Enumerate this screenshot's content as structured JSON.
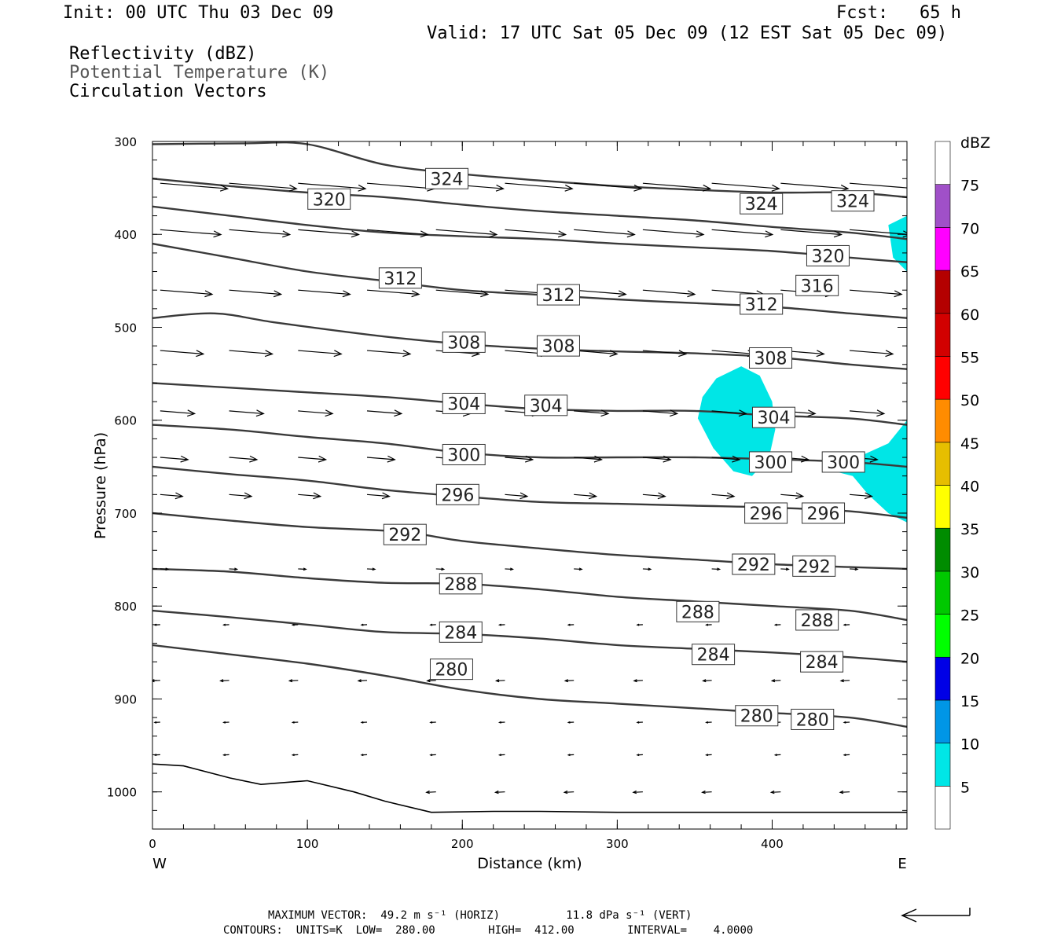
{
  "header": {
    "init": "Init: 00 UTC Thu 03 Dec 09",
    "fcst": "Fcst:   65 h",
    "valid": "Valid: 17 UTC Sat 05 Dec 09 (12 EST Sat 05 Dec 09)"
  },
  "legend": {
    "field1": "Reflectivity (dBZ)",
    "field2": "Potential Temperature (K)",
    "field3": "Circulation Vectors"
  },
  "footer": {
    "max_vector": "MAXIMUM VECTOR:  49.2 m s⁻¹ (HORIZ)          11.8 dPa s⁻¹ (VERT)",
    "contours": "CONTOURS:  UNITS=K  LOW=  280.00        HIGH=  412.00        INTERVAL=    4.0000"
  },
  "colors": {
    "contour": "#3a3a3a",
    "reflectivity_5": "#00e6e6",
    "axis": "#000000"
  },
  "chart_data": {
    "type": "contour",
    "xlabel": "Distance (km)",
    "ylabel": "Pressure (hPa)",
    "x_left_label": "W",
    "x_right_label": "E",
    "xlim": [
      0,
      487
    ],
    "ylim": [
      300,
      1040
    ],
    "y_scale": "linear-inverted",
    "x_ticks": [
      0,
      100,
      200,
      300,
      400
    ],
    "y_ticks": [
      300,
      400,
      500,
      600,
      700,
      800,
      900,
      1000
    ],
    "colorbar": {
      "unit": "dBZ",
      "levels": [
        5,
        10,
        15,
        20,
        25,
        30,
        35,
        40,
        45,
        50,
        55,
        60,
        65,
        70,
        75
      ],
      "colors": [
        "#00e6e6",
        "#0096e6",
        "#0000e6",
        "#00ff00",
        "#00c800",
        "#008c00",
        "#ffff00",
        "#e6be00",
        "#ff8c00",
        "#ff0000",
        "#d20000",
        "#b40000",
        "#ff00ff",
        "#a050c8",
        "#ffffff"
      ]
    },
    "contours": [
      {
        "value": 280,
        "points": [
          [
            0,
            842
          ],
          [
            40,
            850
          ],
          [
            100,
            862
          ],
          [
            150,
            875
          ],
          [
            200,
            890
          ],
          [
            250,
            900
          ],
          [
            300,
            905
          ],
          [
            350,
            910
          ],
          [
            400,
            915
          ],
          [
            450,
            920
          ],
          [
            487,
            930
          ]
        ],
        "labels": [
          [
            193,
            868
          ],
          [
            390,
            918
          ],
          [
            426,
            922
          ]
        ]
      },
      {
        "value": 284,
        "points": [
          [
            0,
            805
          ],
          [
            50,
            812
          ],
          [
            100,
            820
          ],
          [
            150,
            828
          ],
          [
            200,
            830
          ],
          [
            250,
            835
          ],
          [
            300,
            842
          ],
          [
            350,
            846
          ],
          [
            400,
            850
          ],
          [
            450,
            855
          ],
          [
            487,
            860
          ]
        ],
        "labels": [
          [
            199,
            828
          ],
          [
            362,
            852
          ],
          [
            432,
            860
          ]
        ]
      },
      {
        "value": 288,
        "points": [
          [
            0,
            760
          ],
          [
            50,
            763
          ],
          [
            100,
            770
          ],
          [
            150,
            775
          ],
          [
            200,
            776
          ],
          [
            250,
            782
          ],
          [
            300,
            790
          ],
          [
            350,
            795
          ],
          [
            400,
            800
          ],
          [
            450,
            805
          ],
          [
            487,
            815
          ]
        ],
        "labels": [
          [
            199,
            776
          ],
          [
            352,
            806
          ],
          [
            429,
            815
          ]
        ]
      },
      {
        "value": 292,
        "points": [
          [
            0,
            700
          ],
          [
            50,
            708
          ],
          [
            100,
            715
          ],
          [
            160,
            720
          ],
          [
            200,
            730
          ],
          [
            250,
            738
          ],
          [
            300,
            745
          ],
          [
            350,
            750
          ],
          [
            400,
            755
          ],
          [
            450,
            758
          ],
          [
            487,
            760
          ]
        ],
        "labels": [
          [
            163,
            723
          ],
          [
            388,
            755
          ],
          [
            427,
            757
          ]
        ]
      },
      {
        "value": 296,
        "points": [
          [
            0,
            650
          ],
          [
            50,
            658
          ],
          [
            100,
            665
          ],
          [
            150,
            675
          ],
          [
            200,
            682
          ],
          [
            250,
            688
          ],
          [
            300,
            690
          ],
          [
            350,
            692
          ],
          [
            400,
            694
          ],
          [
            450,
            698
          ],
          [
            487,
            705
          ]
        ],
        "labels": [
          [
            197,
            680
          ],
          [
            396,
            700
          ],
          [
            433,
            700
          ]
        ]
      },
      {
        "value": 300,
        "points": [
          [
            0,
            605
          ],
          [
            50,
            610
          ],
          [
            100,
            618
          ],
          [
            150,
            625
          ],
          [
            200,
            635
          ],
          [
            250,
            640
          ],
          [
            300,
            640
          ],
          [
            350,
            640
          ],
          [
            400,
            642
          ],
          [
            450,
            645
          ],
          [
            487,
            650
          ]
        ],
        "labels": [
          [
            201,
            637
          ],
          [
            399,
            645
          ],
          [
            446,
            645
          ]
        ]
      },
      {
        "value": 304,
        "points": [
          [
            0,
            560
          ],
          [
            50,
            565
          ],
          [
            100,
            570
          ],
          [
            150,
            575
          ],
          [
            200,
            582
          ],
          [
            250,
            588
          ],
          [
            300,
            590
          ],
          [
            350,
            590
          ],
          [
            400,
            595
          ],
          [
            450,
            598
          ],
          [
            487,
            605
          ]
        ],
        "labels": [
          [
            201,
            582
          ],
          [
            254,
            584
          ],
          [
            401,
            597
          ]
        ]
      },
      {
        "value": 308,
        "points": [
          [
            0,
            490
          ],
          [
            40,
            485
          ],
          [
            80,
            495
          ],
          [
            150,
            510
          ],
          [
            200,
            518
          ],
          [
            250,
            523
          ],
          [
            300,
            526
          ],
          [
            350,
            528
          ],
          [
            400,
            532
          ],
          [
            450,
            540
          ],
          [
            487,
            545
          ]
        ],
        "labels": [
          [
            201,
            516
          ],
          [
            262,
            520
          ],
          [
            399,
            533
          ]
        ]
      },
      {
        "value": 312,
        "points": [
          [
            0,
            410
          ],
          [
            50,
            425
          ],
          [
            100,
            440
          ],
          [
            150,
            450
          ],
          [
            200,
            460
          ],
          [
            250,
            465
          ],
          [
            300,
            470
          ],
          [
            350,
            474
          ],
          [
            400,
            478
          ],
          [
            450,
            485
          ],
          [
            487,
            490
          ]
        ],
        "labels": [
          [
            160,
            447
          ],
          [
            262,
            465
          ],
          [
            393,
            475
          ]
        ]
      },
      {
        "value": 316,
        "points": [
          [
            0,
            370
          ],
          [
            50,
            380
          ],
          [
            100,
            390
          ],
          [
            150,
            398
          ],
          [
            200,
            402
          ],
          [
            250,
            405
          ],
          [
            300,
            410
          ],
          [
            350,
            414
          ],
          [
            400,
            418
          ],
          [
            450,
            425
          ],
          [
            487,
            430
          ]
        ],
        "labels": [
          [
            429,
            455
          ]
        ]
      },
      {
        "value": 320,
        "points": [
          [
            0,
            340
          ],
          [
            50,
            348
          ],
          [
            100,
            355
          ],
          [
            150,
            360
          ],
          [
            200,
            368
          ],
          [
            250,
            375
          ],
          [
            300,
            380
          ],
          [
            350,
            385
          ],
          [
            400,
            392
          ],
          [
            450,
            398
          ],
          [
            487,
            405
          ]
        ],
        "labels": [
          [
            114,
            362
          ],
          [
            436,
            423
          ]
        ]
      },
      {
        "value": 324,
        "points": [
          [
            0,
            303
          ],
          [
            60,
            302
          ],
          [
            100,
            303
          ],
          [
            150,
            325
          ],
          [
            200,
            335
          ],
          [
            250,
            342
          ],
          [
            300,
            348
          ],
          [
            350,
            352
          ],
          [
            400,
            355
          ],
          [
            450,
            355
          ],
          [
            487,
            360
          ]
        ],
        "labels": [
          [
            190,
            340
          ],
          [
            393,
            367
          ],
          [
            452,
            364
          ]
        ]
      }
    ],
    "terrain_hpa": [
      [
        0,
        970
      ],
      [
        20,
        972
      ],
      [
        50,
        985
      ],
      [
        70,
        992
      ],
      [
        100,
        988
      ],
      [
        130,
        1000
      ],
      [
        150,
        1010
      ],
      [
        180,
        1022
      ],
      [
        220,
        1021
      ],
      [
        250,
        1021
      ],
      [
        300,
        1022
      ],
      [
        350,
        1022
      ],
      [
        400,
        1022
      ],
      [
        450,
        1022
      ],
      [
        487,
        1022
      ]
    ],
    "reflectivity_regions": [
      {
        "dbz": 5,
        "points": [
          [
            352,
            598
          ],
          [
            355,
            575
          ],
          [
            364,
            555
          ],
          [
            380,
            542
          ],
          [
            392,
            552
          ],
          [
            400,
            580
          ],
          [
            402,
            610
          ],
          [
            398,
            640
          ],
          [
            387,
            660
          ],
          [
            375,
            655
          ],
          [
            362,
            630
          ]
        ]
      },
      {
        "dbz": 5,
        "points": [
          [
            475,
            390
          ],
          [
            487,
            380
          ],
          [
            487,
            440
          ],
          [
            478,
            425
          ]
        ]
      },
      {
        "dbz": 5,
        "points": [
          [
            437,
            645
          ],
          [
            455,
            640
          ],
          [
            475,
            625
          ],
          [
            487,
            600
          ],
          [
            487,
            710
          ],
          [
            475,
            700
          ],
          [
            462,
            680
          ],
          [
            452,
            660
          ],
          [
            440,
            655
          ]
        ]
      }
    ]
  }
}
